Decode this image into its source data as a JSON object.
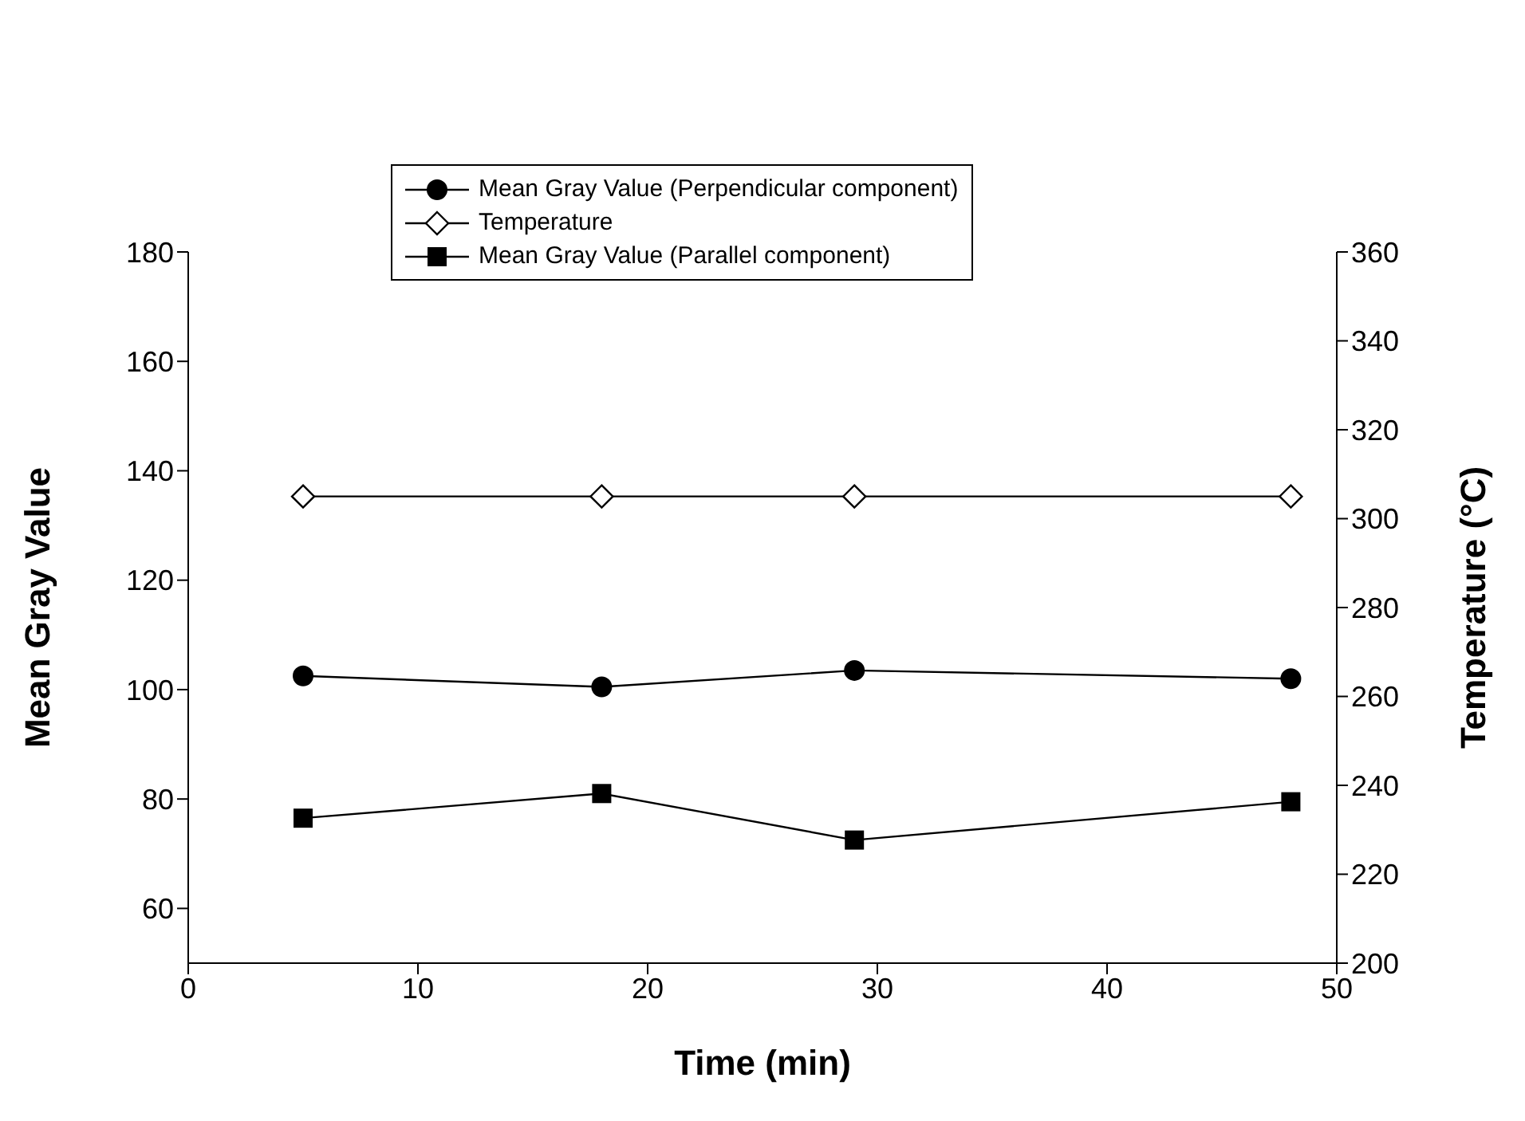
{
  "chart_data": {
    "type": "line",
    "xlabel": "Time (min)",
    "ylabel": "Mean Gray Value",
    "y2label": "Temperature (°C)",
    "x": [
      5,
      18,
      29,
      48
    ],
    "series": [
      {
        "name": "Mean Gray Value (Perpendicular component)",
        "color": "#000000",
        "marker": "circle",
        "values": [
          102.5,
          100.5,
          103.5,
          102
        ]
      },
      {
        "name": "Temperature",
        "color": "#000000",
        "marker": "diamond",
        "axis": "y2",
        "values": [
          305,
          305,
          305,
          305
        ]
      },
      {
        "name": "Mean Gray Value (Parallel component)",
        "color": "#000000",
        "marker": "square",
        "values": [
          76.5,
          81,
          72.5,
          79.5
        ]
      }
    ],
    "xlim": [
      0,
      50
    ],
    "xticks": [
      0,
      10,
      20,
      30,
      40,
      50
    ],
    "ylim": [
      50,
      180
    ],
    "yticks": [
      60,
      80,
      100,
      120,
      140,
      160,
      180
    ],
    "y2lim": [
      200,
      360
    ],
    "y2ticks": [
      200,
      220,
      240,
      260,
      280,
      300,
      320,
      340,
      360
    ],
    "grid": false,
    "legend": "top",
    "line_style": "solid"
  }
}
